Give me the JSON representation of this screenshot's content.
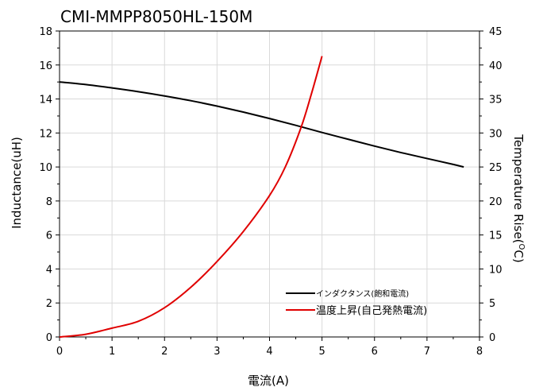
{
  "chart_data": {
    "type": "line",
    "title": "CMI-MMPP8050HL-150M",
    "xlabel": "電流(A)",
    "ylabel_left": "Inductance(uH)",
    "ylabel_right": "Temperature Rise(°C)",
    "ylabel_right_prefix": "Temperature Rise(",
    "ylabel_right_unit_sup": "O",
    "ylabel_right_unit": "C)",
    "xlim": [
      0,
      8
    ],
    "ylim_left": [
      0,
      18
    ],
    "ylim_right": [
      0,
      45
    ],
    "x_ticks": [
      "0",
      "1",
      "2",
      "3",
      "4",
      "5",
      "6",
      "7",
      "8"
    ],
    "y_left_ticks": [
      "0",
      "2",
      "4",
      "6",
      "8",
      "10",
      "12",
      "14",
      "16",
      "18"
    ],
    "y_right_ticks": [
      "0",
      "5",
      "10",
      "15",
      "20",
      "25",
      "30",
      "35",
      "40",
      "45"
    ],
    "grid": true,
    "legend_position": "bottom-right",
    "series": [
      {
        "name": "インダクタンス(飽和電流)",
        "axis": "left",
        "color": "#000000",
        "x": [
          0,
          0.5,
          1,
          1.5,
          2,
          2.5,
          3,
          3.5,
          4,
          4.5,
          5,
          5.5,
          6,
          6.5,
          7,
          7.5,
          7.7
        ],
        "y": [
          15.0,
          14.85,
          14.65,
          14.43,
          14.18,
          13.9,
          13.58,
          13.23,
          12.85,
          12.45,
          12.03,
          11.63,
          11.23,
          10.85,
          10.5,
          10.15,
          10.0
        ]
      },
      {
        "name": "温度上昇(自己発熱電流)",
        "axis": "right",
        "color": "#e00000",
        "x": [
          0,
          0.5,
          1,
          1.5,
          2,
          2.5,
          3,
          3.5,
          4,
          4.3,
          4.6,
          4.8,
          5.0
        ],
        "y": [
          0,
          0.4,
          1.3,
          2.3,
          4.3,
          7.3,
          11.1,
          15.5,
          20.8,
          25.0,
          30.8,
          35.8,
          41.3
        ]
      }
    ]
  }
}
